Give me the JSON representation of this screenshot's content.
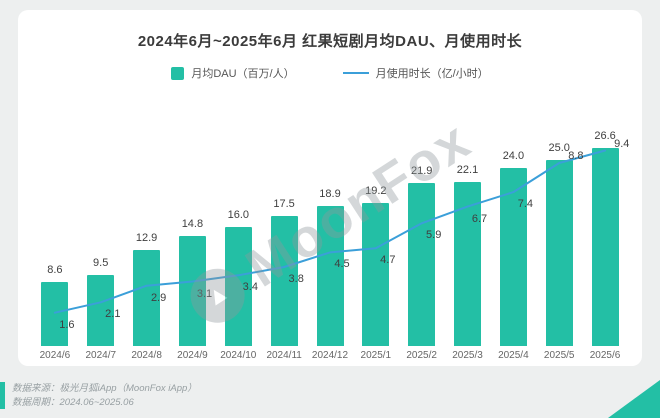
{
  "page": {
    "title": "2024年6月~2025年6月 红果短剧月均DAU、月使用时长",
    "watermark": "MoonFox",
    "footer": {
      "source": "数据来源：极光月狐iApp（MoonFox iApp）",
      "period": "数据周期：2024.06~2025.06"
    }
  },
  "legend": {
    "bar_label": "月均DAU（百万/人）",
    "line_label": "月使用时长（亿/小时）"
  },
  "icons": {
    "moonfox_logo": "▲"
  },
  "colors": {
    "bar": "#23BFA5",
    "line": "#3B9FD9",
    "title_text": "#3b3b3b",
    "value_text": "#3f3f3f",
    "axis_text": "#666666",
    "footer_text": "#98a0a3",
    "card_bg": "#ffffff",
    "page_bg": "#edefef"
  },
  "chart_data": {
    "type": "bar",
    "subtype": "bar+line combo",
    "title": "2024年6月~2025年6月 红果短剧月均DAU、月使用时长",
    "categories": [
      "2024/6",
      "2024/7",
      "2024/8",
      "2024/9",
      "2024/10",
      "2024/11",
      "2024/12",
      "2025/1",
      "2025/2",
      "2025/3",
      "2025/4",
      "2025/5",
      "2025/6"
    ],
    "series": [
      {
        "name": "月均DAU（百万/人）",
        "type": "bar",
        "values": [
          8.6,
          9.5,
          12.9,
          14.8,
          16.0,
          17.5,
          18.9,
          19.2,
          21.9,
          22.1,
          24.0,
          25.0,
          26.6
        ],
        "axis_max": 28
      },
      {
        "name": "月使用时长（亿/小时）",
        "type": "line",
        "values": [
          1.6,
          2.1,
          2.9,
          3.1,
          3.4,
          3.8,
          4.5,
          4.7,
          5.9,
          6.7,
          7.4,
          8.8,
          9.4
        ],
        "axis_max": 10
      }
    ],
    "grid": false,
    "legend_position": "top",
    "data_labels": true
  }
}
